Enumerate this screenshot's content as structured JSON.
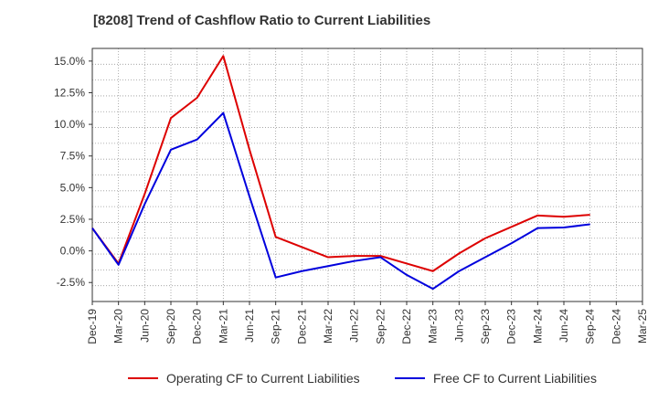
{
  "chart_data": {
    "type": "line",
    "title": "[8208]  Trend of Cashflow Ratio to Current Liabilities",
    "xlabel": "",
    "ylabel": "",
    "x_ticks": [
      "Dec-19",
      "Mar-20",
      "Jun-20",
      "Sep-20",
      "Dec-20",
      "Mar-21",
      "Jun-21",
      "Sep-21",
      "Dec-21",
      "Mar-22",
      "Jun-22",
      "Sep-22",
      "Dec-22",
      "Mar-23",
      "Jun-23",
      "Sep-23",
      "Dec-23",
      "Mar-24",
      "Jun-24",
      "Sep-24",
      "Dec-24",
      "Mar-25"
    ],
    "y_ticks": [
      15.0,
      12.5,
      10.0,
      7.5,
      5.0,
      2.5,
      0.0,
      -2.5
    ],
    "y_tick_labels": [
      "15.0%",
      "12.5%",
      "10.0%",
      "7.5%",
      "5.0%",
      "2.5%",
      "0.0%",
      "-2.5%"
    ],
    "ylim": [
      -4.0,
      16.0
    ],
    "grid": true,
    "legend_position": "bottom",
    "series": [
      {
        "name": "Operating CF to Current Liabilities",
        "color": "#dd0000",
        "values": [
          1.8,
          -1.0,
          4.5,
          10.5,
          12.1,
          15.4,
          8.0,
          1.1,
          0.3,
          -0.5,
          -0.4,
          -0.4,
          -1.0,
          -1.6,
          -0.2,
          1.0,
          1.9,
          2.8,
          2.7,
          2.85,
          null,
          null
        ]
      },
      {
        "name": "Free CF to Current Liabilities",
        "color": "#0000dd",
        "values": [
          1.8,
          -1.1,
          3.7,
          8.0,
          8.8,
          10.9,
          4.3,
          -2.1,
          -1.6,
          -1.2,
          -0.8,
          -0.5,
          -1.9,
          -3.0,
          -1.6,
          -0.5,
          0.6,
          1.8,
          1.85,
          2.1,
          null,
          null
        ]
      }
    ]
  }
}
